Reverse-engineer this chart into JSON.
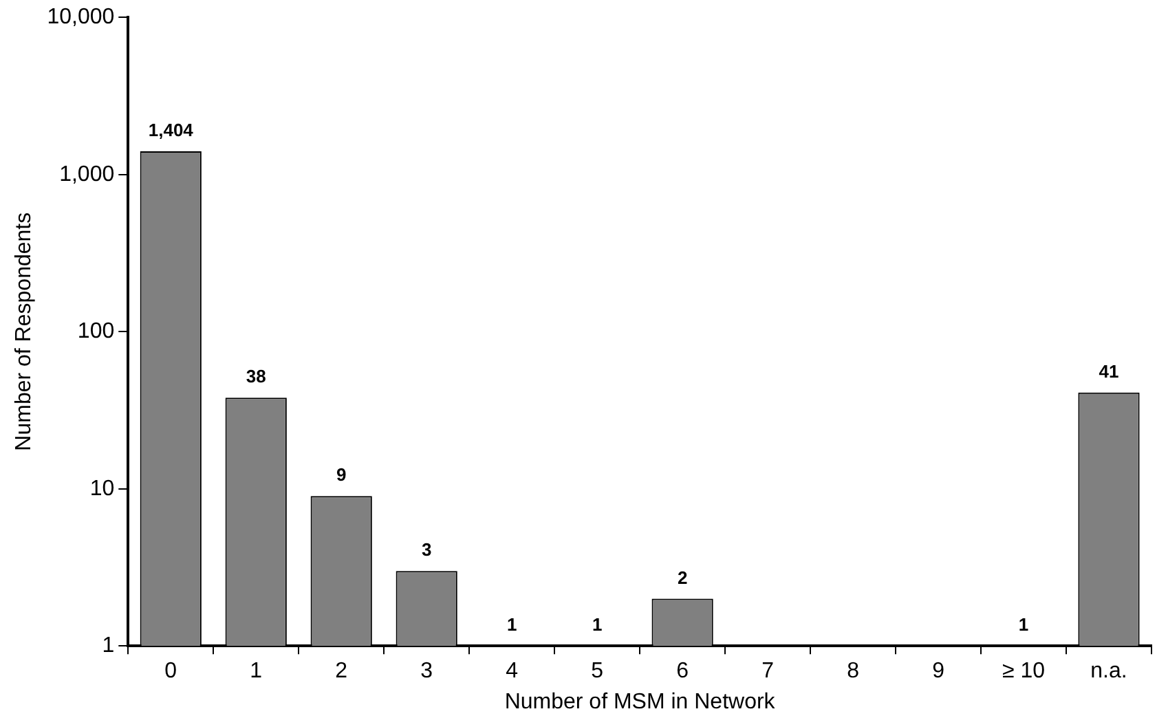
{
  "chart_data": {
    "type": "bar",
    "xlabel": "Number of MSM in Network",
    "ylabel": "Number of Respondents",
    "categories": [
      "0",
      "1",
      "2",
      "3",
      "4",
      "5",
      "6",
      "7",
      "8",
      "9",
      "≥ 10",
      "n.a."
    ],
    "values": [
      1404,
      38,
      9,
      3,
      1,
      1,
      2,
      null,
      null,
      null,
      1,
      41
    ],
    "value_labels": [
      "1,404",
      "38",
      "9",
      "3",
      "1",
      "1",
      "2",
      null,
      null,
      null,
      "1",
      "41"
    ],
    "color": "#808080",
    "log": "y",
    "ylim": [
      1,
      10000
    ],
    "yticks": [
      1,
      10,
      100,
      {
        "value": 1000,
        "label": "1,000"
      },
      {
        "value": 10000,
        "label": "10,000"
      }
    ],
    "grid": false,
    "legend": false
  }
}
